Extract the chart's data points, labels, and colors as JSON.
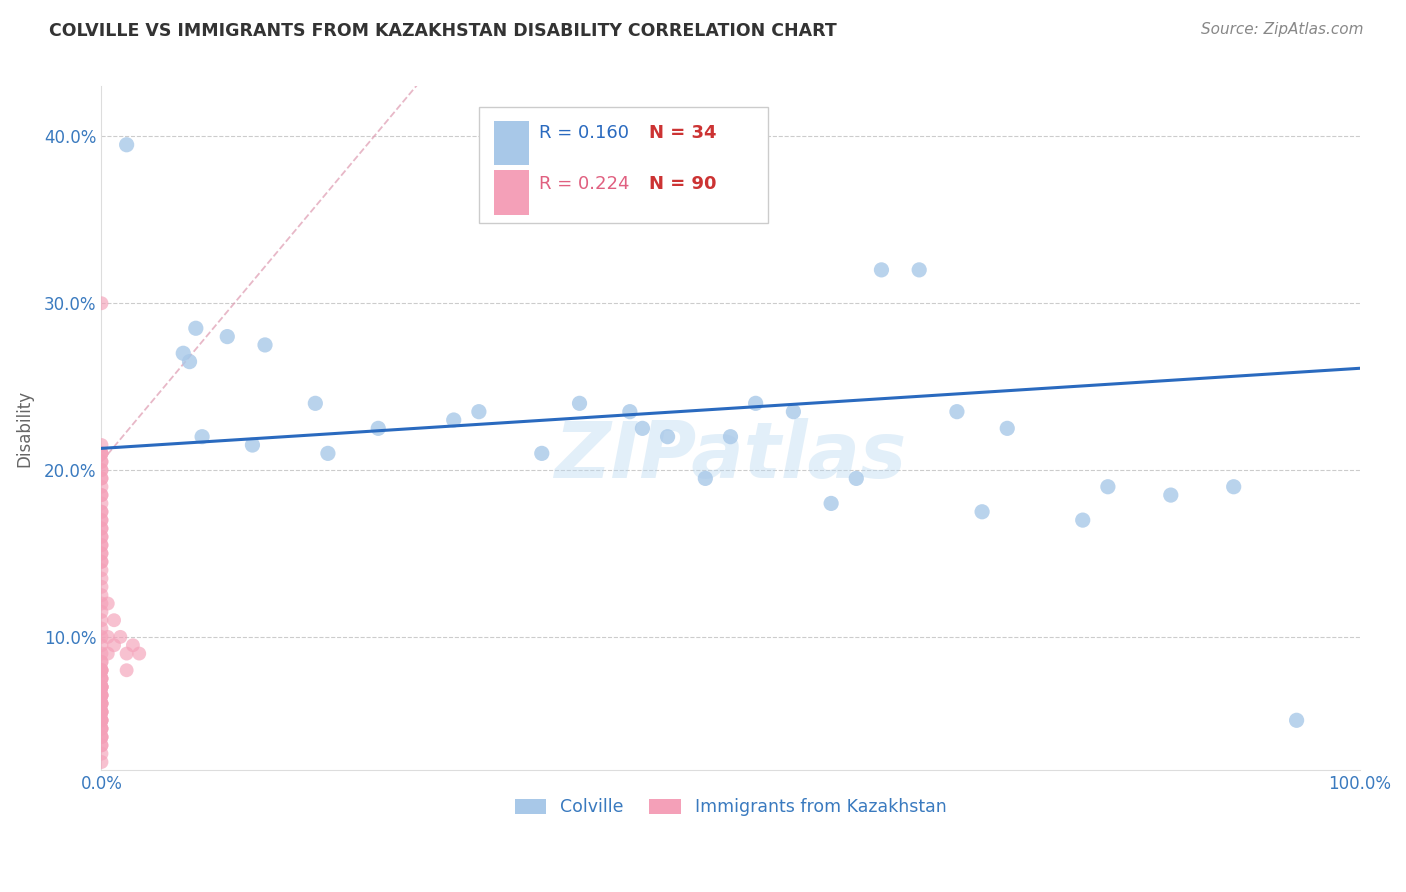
{
  "title": "COLVILLE VS IMMIGRANTS FROM KAZAKHSTAN DISABILITY CORRELATION CHART",
  "source": "Source: ZipAtlas.com",
  "ylabel": "Disability",
  "xlim": [
    0.0,
    1.0
  ],
  "ylim": [
    0.02,
    0.43
  ],
  "x_ticks": [
    0.0,
    0.25,
    0.5,
    0.75,
    1.0
  ],
  "x_tick_labels": [
    "0.0%",
    "",
    "",
    "",
    "100.0%"
  ],
  "y_ticks": [
    0.1,
    0.2,
    0.3,
    0.4
  ],
  "y_tick_labels": [
    "10.0%",
    "20.0%",
    "30.0%",
    "40.0%"
  ],
  "colville_color": "#a8c8e8",
  "kazakhstan_color": "#f4a0b8",
  "colville_R": 0.16,
  "colville_N": 34,
  "kazakhstan_R": 0.224,
  "kazakhstan_N": 90,
  "colville_line_color": "#2a6abf",
  "kazakhstan_line_color": "#d8a0b0",
  "watermark": "ZIPatlas",
  "colville_x": [
    0.02,
    0.07,
    0.065,
    0.075,
    0.1,
    0.13,
    0.17,
    0.22,
    0.28,
    0.3,
    0.38,
    0.42,
    0.43,
    0.45,
    0.5,
    0.52,
    0.55,
    0.6,
    0.62,
    0.65,
    0.68,
    0.72,
    0.8,
    0.85,
    0.9,
    0.08,
    0.12,
    0.18,
    0.35,
    0.48,
    0.58,
    0.7,
    0.78,
    0.95
  ],
  "colville_y": [
    0.395,
    0.265,
    0.27,
    0.285,
    0.28,
    0.275,
    0.24,
    0.225,
    0.23,
    0.235,
    0.24,
    0.235,
    0.225,
    0.22,
    0.22,
    0.24,
    0.235,
    0.195,
    0.32,
    0.32,
    0.235,
    0.225,
    0.19,
    0.185,
    0.19,
    0.22,
    0.215,
    0.21,
    0.21,
    0.195,
    0.18,
    0.175,
    0.17,
    0.05
  ],
  "kazakhstan_x": [
    0.0,
    0.0,
    0.0,
    0.0,
    0.0,
    0.0,
    0.0,
    0.0,
    0.0,
    0.0,
    0.0,
    0.0,
    0.0,
    0.0,
    0.0,
    0.0,
    0.0,
    0.0,
    0.0,
    0.0,
    0.0,
    0.0,
    0.0,
    0.0,
    0.0,
    0.0,
    0.0,
    0.0,
    0.0,
    0.0,
    0.0,
    0.0,
    0.0,
    0.0,
    0.0,
    0.0,
    0.0,
    0.0,
    0.0,
    0.0,
    0.0,
    0.0,
    0.0,
    0.0,
    0.0,
    0.0,
    0.0,
    0.0,
    0.0,
    0.0,
    0.0,
    0.0,
    0.0,
    0.0,
    0.0,
    0.0,
    0.0,
    0.0,
    0.0,
    0.0,
    0.0,
    0.0,
    0.0,
    0.0,
    0.0,
    0.0,
    0.0,
    0.0,
    0.0,
    0.0,
    0.0,
    0.0,
    0.0,
    0.0,
    0.0,
    0.0,
    0.0,
    0.0,
    0.0,
    0.0,
    0.005,
    0.005,
    0.005,
    0.01,
    0.01,
    0.015,
    0.02,
    0.02,
    0.025,
    0.03
  ],
  "kazakhstan_y": [
    0.21,
    0.21,
    0.205,
    0.2,
    0.195,
    0.19,
    0.185,
    0.18,
    0.175,
    0.17,
    0.165,
    0.16,
    0.155,
    0.15,
    0.145,
    0.14,
    0.135,
    0.13,
    0.125,
    0.12,
    0.115,
    0.11,
    0.105,
    0.1,
    0.095,
    0.09,
    0.085,
    0.08,
    0.075,
    0.07,
    0.065,
    0.06,
    0.055,
    0.05,
    0.045,
    0.04,
    0.035,
    0.3,
    0.215,
    0.21,
    0.205,
    0.2,
    0.195,
    0.185,
    0.175,
    0.17,
    0.165,
    0.16,
    0.155,
    0.15,
    0.145,
    0.085,
    0.08,
    0.075,
    0.07,
    0.065,
    0.06,
    0.055,
    0.05,
    0.08,
    0.075,
    0.07,
    0.065,
    0.06,
    0.05,
    0.045,
    0.04,
    0.055,
    0.05,
    0.045,
    0.04,
    0.035,
    0.03,
    0.025,
    0.08,
    0.07,
    0.065,
    0.06,
    0.055,
    0.07,
    0.12,
    0.1,
    0.09,
    0.11,
    0.095,
    0.1,
    0.09,
    0.08,
    0.095,
    0.09
  ]
}
